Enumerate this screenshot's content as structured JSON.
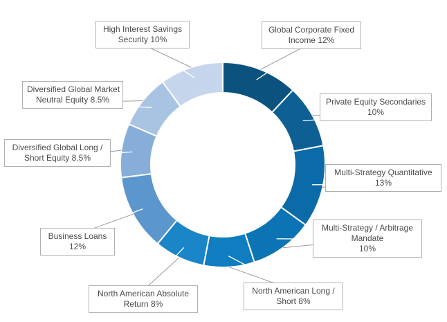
{
  "chart_data": {
    "type": "pie",
    "variant": "donut",
    "slices": [
      {
        "label": "Global Corporate Fixed Income",
        "value": 12,
        "value_text": "12%",
        "line1": "Global Corporate Fixed",
        "line2": "Income 12%",
        "color": "#0b527e"
      },
      {
        "label": "Private Equity Secondaries",
        "value": 10,
        "value_text": "10%",
        "line1": "Private Equity Secondaries",
        "line2": "10%",
        "color": "#0d5f94"
      },
      {
        "label": "Multi-Strategy Quantitative",
        "value": 13,
        "value_text": "13%",
        "line1": "Multi-Strategy Quantitative",
        "line2": "13%",
        "color": "#0b6ba8"
      },
      {
        "label": "Multi-Strategy / Arbitrage Mandate",
        "value": 10,
        "value_text": "10%",
        "line1": "Multi-Strategy / Arbitrage",
        "line2": "Mandate",
        "line3": "10%",
        "color": "#0c74b5"
      },
      {
        "label": "North American Long / Short",
        "value": 8,
        "value_text": "8%",
        "line1": "North American Long /",
        "line2": "Short 8%",
        "color": "#0f7dc0"
      },
      {
        "label": "North American Absolute Return",
        "value": 8,
        "value_text": "8%",
        "line1": "North American Absolute",
        "line2": "Return 8%",
        "color": "#1a86c8"
      },
      {
        "label": "Business Loans",
        "value": 12,
        "value_text": "12%",
        "line1": "Business Loans",
        "line2": "12%",
        "color": "#5b97cc"
      },
      {
        "label": "Diversified Global Long / Short Equity",
        "value": 8.5,
        "value_text": "8.5%",
        "line1": "Diversified Global Long /",
        "line2": "Short Equity 8.5%",
        "color": "#86aed8"
      },
      {
        "label": "Diversified Global Market Neutral Equity",
        "value": 8.5,
        "value_text": "8.5%",
        "line1": "Diversified Global Market",
        "line2": "Neutral Equity 8.5%",
        "color": "#a9c3e3"
      },
      {
        "label": "High Interest Savings Security",
        "value": 10,
        "value_text": "10%",
        "line1": "High Interest Savings",
        "line2": "Security 10%",
        "color": "#c5d6ec"
      }
    ],
    "start": "12 o'clock",
    "direction": "clockwise",
    "legend": "none"
  }
}
